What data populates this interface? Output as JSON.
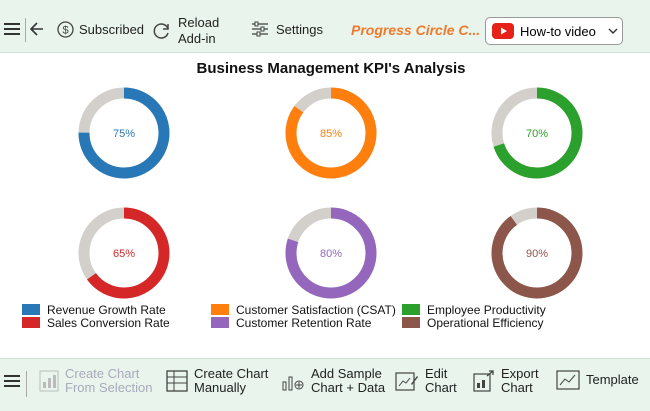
{
  "toolbar": {
    "subscribed_label": "Subscribed",
    "reload_label": "Reload\nAdd-in",
    "settings_label": "Settings",
    "addon_title": "Progress Circle C...",
    "howto_label": "How-to video"
  },
  "bottom_toolbar": {
    "create_from_selection": "Create Chart\nFrom Selection",
    "create_manually": "Create Chart\nManually",
    "add_sample": "Add Sample\nChart + Data",
    "edit_chart": "Edit\nChart",
    "export_chart": "Export\nChart",
    "template": "Template"
  },
  "colors": {
    "accent_orange": "#f07a2c",
    "toolbar_bg": "#e8f4ec",
    "ring_remainder": "#d3d0cb",
    "youtube_red": "#e62117"
  },
  "chart_data": {
    "type": "progress-circle",
    "title": "Business Management KPI's Analysis",
    "series": [
      {
        "name": "Revenue Growth Rate",
        "value": 75,
        "label": "75%",
        "color": "#2878b8"
      },
      {
        "name": "Customer Satisfaction (CSAT)",
        "value": 85,
        "label": "85%",
        "color": "#ff7f0e"
      },
      {
        "name": "Employee Productivity",
        "value": 70,
        "label": "70%",
        "color": "#2ca02c"
      },
      {
        "name": "Sales Conversion Rate",
        "value": 65,
        "label": "65%",
        "color": "#d62728"
      },
      {
        "name": "Customer Retention Rate",
        "value": 80,
        "label": "80%",
        "color": "#9467bd"
      },
      {
        "name": "Operational Efficiency",
        "value": 90,
        "label": "90%",
        "color": "#8c564b"
      }
    ],
    "legend_position": "bottom"
  }
}
